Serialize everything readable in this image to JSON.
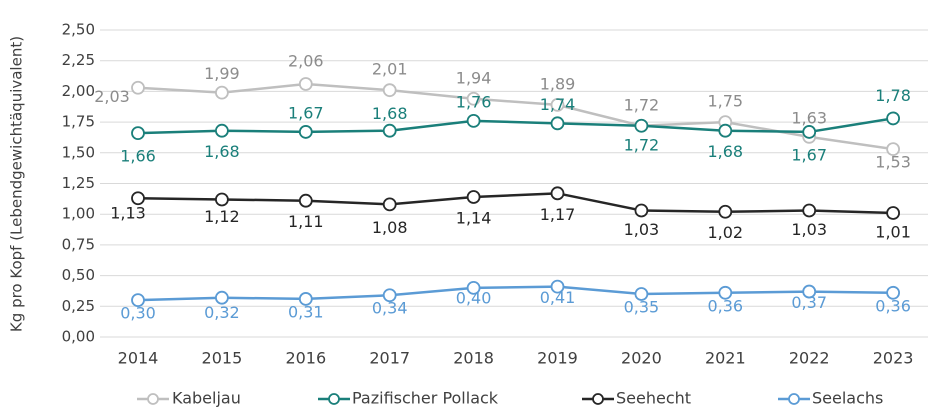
{
  "chart_data": {
    "type": "line",
    "y_label": "Kg pro Kopf (Lebendgewichtäquivalent)",
    "categories": [
      "2014",
      "2015",
      "2016",
      "2017",
      "2018",
      "2019",
      "2020",
      "2021",
      "2022",
      "2023"
    ],
    "ylim": [
      0,
      2.5
    ],
    "yticks": [
      {
        "value": 0,
        "label": "0,00"
      },
      {
        "value": 0.25,
        "label": "0,25"
      },
      {
        "value": 0.5,
        "label": "0,50"
      },
      {
        "value": 0.75,
        "label": "0,75"
      },
      {
        "value": 1,
        "label": "1,00"
      },
      {
        "value": 1.25,
        "label": "1,25"
      },
      {
        "value": 1.5,
        "label": "1,50"
      },
      {
        "value": 1.75,
        "label": "1,75"
      },
      {
        "value": 2,
        "label": "2,00"
      },
      {
        "value": 2.25,
        "label": "2,25"
      },
      {
        "value": 2.5,
        "label": "2,50"
      }
    ],
    "grid": true,
    "legend": "bottom",
    "series": [
      {
        "name": "Kabeljau",
        "color": "#bfbfbf",
        "label_color": "#8c8c8c",
        "values": [
          2.03,
          1.99,
          2.06,
          2.01,
          1.94,
          1.89,
          1.72,
          1.75,
          1.63,
          1.53
        ],
        "value_labels": [
          "2,03",
          "1,99",
          "2,06",
          "2,01",
          "1,94",
          "1,89",
          "1,72",
          "1,75",
          "1,63",
          "1,53"
        ]
      },
      {
        "name": "Pazifischer Pollack",
        "color": "#1a7f7a",
        "label_color": "#1a7f7a",
        "values": [
          1.66,
          1.68,
          1.67,
          1.68,
          1.76,
          1.74,
          1.72,
          1.68,
          1.67,
          1.78
        ],
        "value_labels": [
          "1,66",
          "1,68",
          "1,67",
          "1,68",
          "1,76",
          "1,74",
          "1,72",
          "1,68",
          "1,67",
          "1,78"
        ]
      },
      {
        "name": "Seehecht",
        "color": "#262626",
        "label_color": "#262626",
        "values": [
          1.13,
          1.12,
          1.11,
          1.08,
          1.14,
          1.17,
          1.03,
          1.02,
          1.03,
          1.01
        ],
        "value_labels": [
          "1,13",
          "1,12",
          "1,11",
          "1,08",
          "1,14",
          "1,17",
          "1,03",
          "1,02",
          "1,03",
          "1,01"
        ]
      },
      {
        "name": "Seelachs",
        "color": "#5b9bd5",
        "label_color": "#5b9bd5",
        "values": [
          0.3,
          0.32,
          0.31,
          0.34,
          0.4,
          0.41,
          0.35,
          0.36,
          0.37,
          0.36
        ],
        "value_labels": [
          "0,30",
          "0,32",
          "0,31",
          "0,34",
          "0,40",
          "0,41",
          "0,35",
          "0,36",
          "0,37",
          "0,36"
        ]
      }
    ]
  }
}
